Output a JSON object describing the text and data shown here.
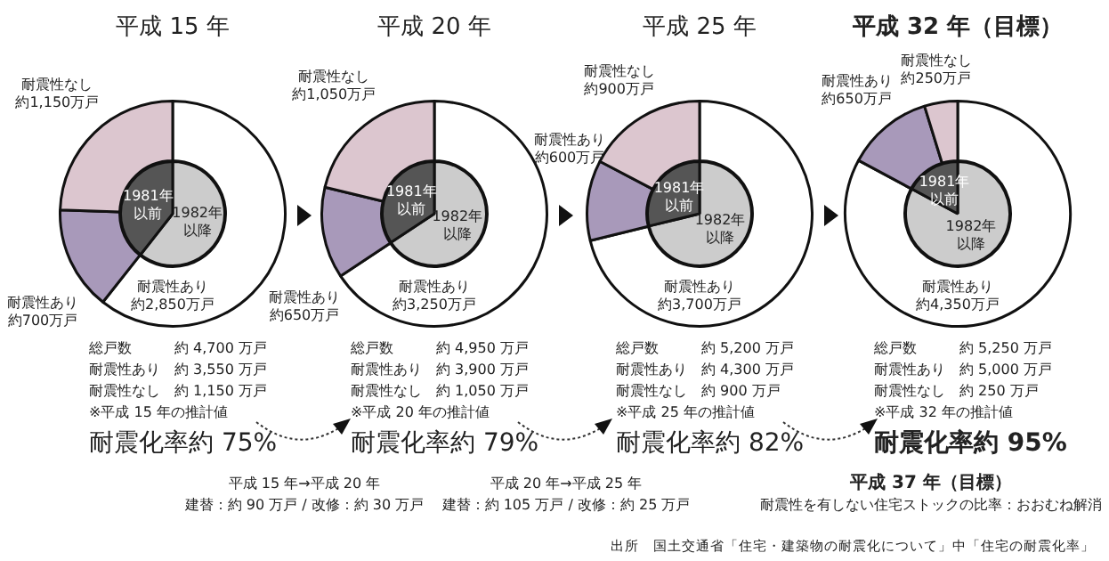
{
  "chart_data": [
    {
      "type": "donut",
      "title": "平成 15 年",
      "categories": [
        "耐震性あり",
        "耐震性あり",
        "耐震性なし"
      ],
      "values": [
        2850,
        700,
        1150
      ],
      "colors": [
        "#ffffff",
        "#a899ba",
        "#dcc6cf"
      ],
      "value_labels": [
        "約2,850万戸",
        "約700万戸",
        "約1,150万戸"
      ],
      "annotations": [
        "総戸数\t約 4,700 万戸",
        "耐震性あり\t約 3,550 万戸",
        "耐震性なし\t約 1,150 万戸",
        "※平成 15 年の推計値",
        "耐震化率約 75%",
        "平成 15 年→平成 20 年",
        "建替：約 90 万戸 / 改修：約 30 万戸"
      ]
    },
    {
      "type": "pie",
      "categories": [
        "1982年以降",
        "1981年以前"
      ],
      "values": [
        60.6,
        39.4
      ],
      "colors": [
        "#cccccc",
        "#555555"
      ]
    },
    {
      "type": "donut",
      "title": "平成 20 年",
      "categories": [
        "耐震性あり",
        "耐震性あり",
        "耐震性なし"
      ],
      "values": [
        3250,
        650,
        1050
      ],
      "colors": [
        "#ffffff",
        "#a899ba",
        "#dcc6cf"
      ],
      "value_labels": [
        "約3,250万戸",
        "約650万戸",
        "約1,050万戸"
      ],
      "annotations": [
        "総戸数\t約 4,950 万戸",
        "耐震性あり\t約 3,900 万戸",
        "耐震性なし\t約 1,050 万戸",
        "※平成 20 年の推計値",
        "耐震化率約 79%",
        "平成 20 年→平成 25 年",
        "建替：約 105 万戸 / 改修：約 25 万戸"
      ]
    },
    {
      "type": "pie",
      "categories": [
        "1982年以降",
        "1981年以前"
      ],
      "values": [
        65.7,
        34.3
      ],
      "colors": [
        "#cccccc",
        "#555555"
      ]
    },
    {
      "type": "donut",
      "title": "平成 25 年",
      "categories": [
        "耐震性あり",
        "耐震性あり",
        "耐震性なし"
      ],
      "values": [
        3700,
        600,
        900
      ],
      "colors": [
        "#ffffff",
        "#a899ba",
        "#dcc6cf"
      ],
      "value_labels": [
        "約3,700万戸",
        "約600万戸",
        "約900万戸"
      ],
      "annotations": [
        "総戸数\t約 5,200 万戸",
        "耐震性あり\t約 4,300 万戸",
        "耐震性なし\t約 900 万戸",
        "※平成 25 年の推計値",
        "耐震化率約 82%"
      ]
    },
    {
      "type": "pie",
      "categories": [
        "1982年以降",
        "1981年以前"
      ],
      "values": [
        71.2,
        28.8
      ],
      "colors": [
        "#cccccc",
        "#555555"
      ]
    },
    {
      "type": "donut",
      "title": "平成 32 年（目標）",
      "categories": [
        "耐震性あり",
        "耐震性あり",
        "耐震性なし"
      ],
      "values": [
        4350,
        650,
        250
      ],
      "colors": [
        "#ffffff",
        "#a899ba",
        "#dcc6cf"
      ],
      "value_labels": [
        "約4,350万戸",
        "約650万戸",
        "約250万戸"
      ],
      "annotations": [
        "総戸数\t約 5,250 万戸",
        "耐震性あり\t約 5,000 万戸",
        "耐震性なし\t約 250 万戸",
        "※平成 32 年の推計値",
        "耐震化率約 95%",
        "平成 37 年（目標）",
        "耐震性を有しない住宅ストックの比率：おおむね解消",
        "出所　国土交通省「住宅・建築物の耐震化について」中「住宅の耐震化率」"
      ]
    },
    {
      "type": "pie",
      "categories": [
        "1982年以降",
        "1981年以前"
      ],
      "values": [
        82.9,
        17.1
      ],
      "colors": [
        "#cccccc",
        "#555555"
      ]
    }
  ]
}
